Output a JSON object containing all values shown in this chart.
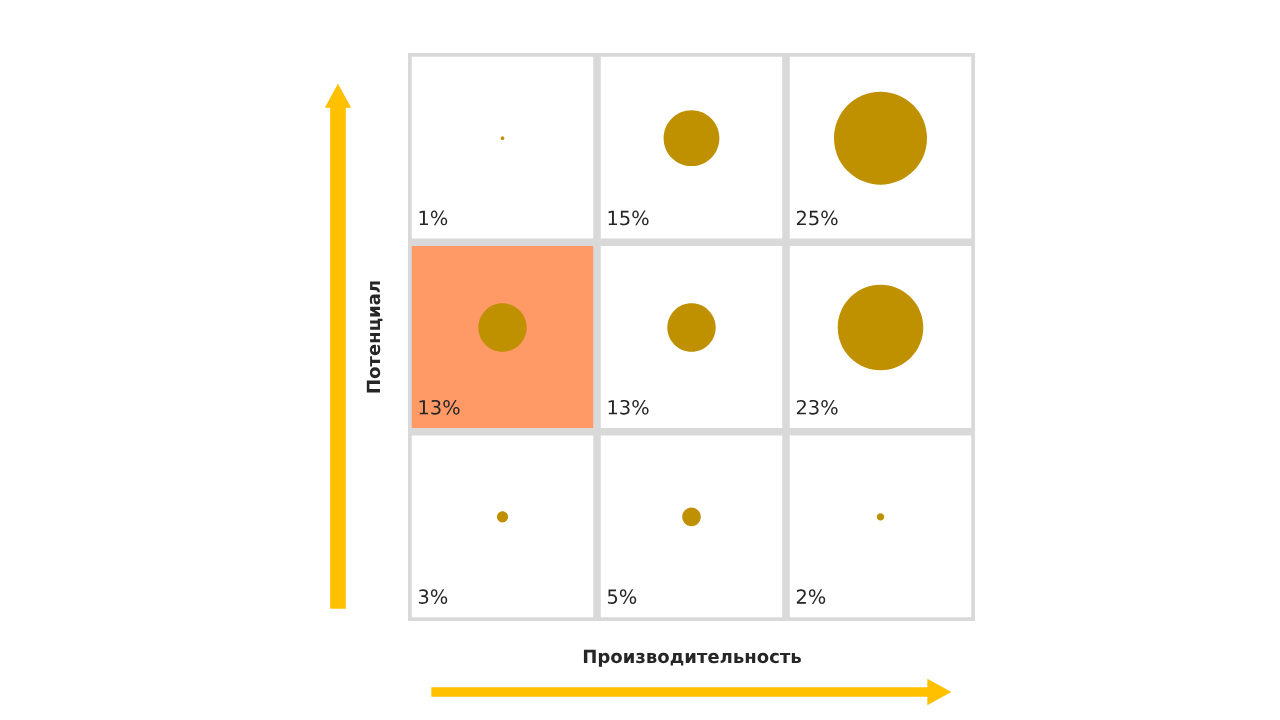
{
  "chart_data": {
    "type": "heatmap",
    "categories": [
      null,
      null,
      null
    ],
    "y_categories": [
      null,
      null,
      null
    ],
    "xlabel": "Производительность",
    "ylabel": "Потенциал",
    "cells": [
      [
        1,
        15,
        25
      ],
      [
        13,
        13,
        23
      ],
      [
        3,
        5,
        2
      ]
    ],
    "cell_labels": [
      [
        "1%",
        "15%",
        "25%"
      ],
      [
        "13%",
        "13%",
        "23%"
      ],
      [
        "3%",
        "5%",
        "2%"
      ]
    ],
    "color": "#bf9000",
    "colors": [
      "#ffffff",
      "#ffffff",
      "#ffffff",
      "#ff9966",
      "#ffffff",
      "#ffffff",
      "#ffffff",
      "#ffffff",
      "#ffffff"
    ]
  }
}
